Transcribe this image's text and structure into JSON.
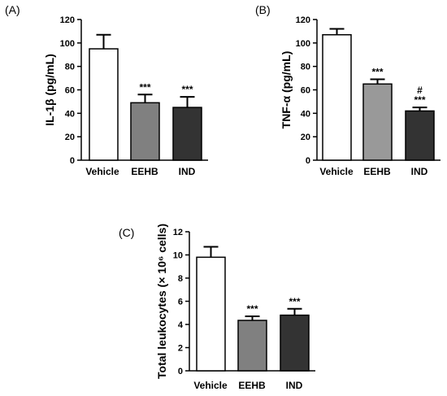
{
  "chart_data": [
    {
      "panel": "(A)",
      "type": "bar",
      "ylabel": "IL-1β (pg/mL)",
      "categories": [
        "Vehicle",
        "EEHB",
        "IND"
      ],
      "values": [
        95,
        49,
        45
      ],
      "errors": [
        12,
        7,
        9
      ],
      "annotations": [
        [],
        [
          "***"
        ],
        [
          "***"
        ]
      ],
      "ylim": [
        0,
        120
      ],
      "yticks": [
        "0",
        "20",
        "40",
        "60",
        "80",
        "100",
        "120"
      ],
      "colors": [
        "#ffffff",
        "#808080",
        "#333333"
      ]
    },
    {
      "panel": "(B)",
      "type": "bar",
      "ylabel": "TNF-α (pg/mL)",
      "categories": [
        "Vehicle",
        "EEHB",
        "IND"
      ],
      "values": [
        107,
        65,
        42
      ],
      "errors": [
        5,
        4,
        3
      ],
      "annotations": [
        [],
        [
          "***"
        ],
        [
          "***",
          "#"
        ]
      ],
      "ylim": [
        0,
        120
      ],
      "yticks": [
        "0",
        "20",
        "40",
        "60",
        "80",
        "100",
        "120"
      ],
      "colors": [
        "#ffffff",
        "#999999",
        "#333333"
      ]
    },
    {
      "panel": "(C)",
      "type": "bar",
      "ylabel": "Total leukocytes (× 10⁶ cells)",
      "categories": [
        "Vehicle",
        "EEHB",
        "IND"
      ],
      "values": [
        9.8,
        4.35,
        4.8
      ],
      "errors": [
        0.9,
        0.35,
        0.55
      ],
      "annotations": [
        [],
        [
          "***"
        ],
        [
          "***"
        ]
      ],
      "ylim": [
        0,
        12
      ],
      "yticks": [
        "0",
        "2",
        "4",
        "6",
        "8",
        "10",
        "12"
      ],
      "colors": [
        "#ffffff",
        "#808080",
        "#333333"
      ]
    }
  ]
}
